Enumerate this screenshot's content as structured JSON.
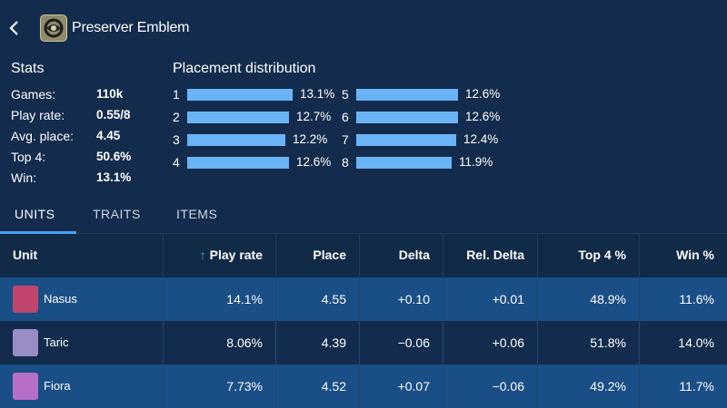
{
  "header": {
    "title": "Preserver Emblem",
    "emblem_icon": "preserver-emblem-icon",
    "back_icon": "chevron-left-icon"
  },
  "stats": {
    "heading": "Stats",
    "items": [
      {
        "label": "Games:",
        "value": "110k"
      },
      {
        "label": "Play rate:",
        "value": "0.55/8"
      },
      {
        "label": "Avg. place:",
        "value": "4.45"
      },
      {
        "label": "Top 4:",
        "value": "50.6%"
      },
      {
        "label": "Win:",
        "value": "13.1%"
      }
    ]
  },
  "placement": {
    "heading": "Placement distribution",
    "rows": [
      {
        "place": "1",
        "pct": "13.1%",
        "value": 13.1
      },
      {
        "place": "2",
        "pct": "12.7%",
        "value": 12.7
      },
      {
        "place": "3",
        "pct": "12.2%",
        "value": 12.2
      },
      {
        "place": "4",
        "pct": "12.6%",
        "value": 12.6
      },
      {
        "place": "5",
        "pct": "12.6%",
        "value": 12.6
      },
      {
        "place": "6",
        "pct": "12.6%",
        "value": 12.6
      },
      {
        "place": "7",
        "pct": "12.4%",
        "value": 12.4
      },
      {
        "place": "8",
        "pct": "11.9%",
        "value": 11.9
      }
    ]
  },
  "tabs": [
    {
      "label": "UNITS",
      "active": true
    },
    {
      "label": "TRAITS",
      "active": false
    },
    {
      "label": "ITEMS",
      "active": false
    }
  ],
  "table": {
    "columns": [
      "Unit",
      "Play rate",
      "Place",
      "Delta",
      "Rel. Delta",
      "Top 4 %",
      "Win %"
    ],
    "sorted_column": "Play rate",
    "sort_icon": "arrow-up-icon",
    "rows": [
      {
        "unit": "Nasus",
        "avatar_color": "#c0466e",
        "cells": [
          "14.1%",
          "4.55",
          "+0.10",
          "+0.01",
          "48.9%",
          "11.6%"
        ]
      },
      {
        "unit": "Taric",
        "avatar_color": "#9a8cc4",
        "cells": [
          "8.06%",
          "4.39",
          "−0.06",
          "+0.06",
          "51.8%",
          "14.0%"
        ]
      },
      {
        "unit": "Fiora",
        "avatar_color": "#b66fc7",
        "cells": [
          "7.73%",
          "4.52",
          "+0.07",
          "−0.06",
          "49.2%",
          "11.7%"
        ]
      }
    ]
  },
  "colors": {
    "background": "#132c4d",
    "accent": "#4ba0f0",
    "bar": "#6ab3f5",
    "row_highlight": "#1a4e86"
  }
}
